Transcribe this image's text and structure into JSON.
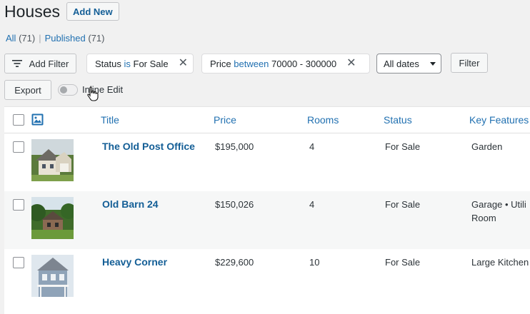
{
  "header": {
    "title": "Houses",
    "add_new": "Add New"
  },
  "views": {
    "all": "All",
    "all_count": "(71)",
    "separator": "|",
    "published": "Published",
    "published_count": "(71)"
  },
  "filters": {
    "add_filter": "Add Filter",
    "status_field": "Status",
    "status_op": "is",
    "status_value": "For Sale",
    "price_field": "Price",
    "price_op": "between",
    "price_value": "70000 - 300000",
    "dates_select": "All dates",
    "filter_button": "Filter",
    "export_button": "Export",
    "inline_edit": "Inline Edit",
    "inline_edit_on": false
  },
  "table": {
    "columns": [
      "Title",
      "Price",
      "Rooms",
      "Status",
      "Key Features"
    ],
    "rows": [
      {
        "title": "The Old Post Office",
        "price": "$195,000",
        "rooms": "4",
        "status": "For Sale",
        "features": "Garden"
      },
      {
        "title": "Old Barn 24",
        "price": "$150,026",
        "rooms": "4",
        "status": "For Sale",
        "features": "Garage • Utili Room"
      },
      {
        "title": "Heavy Corner",
        "price": "$229,600",
        "rooms": "10",
        "status": "For Sale",
        "features": "Large Kitchen"
      }
    ]
  },
  "colors": {
    "link": "#2271b1",
    "link_dark": "#135e96",
    "background": "#f1f1f1"
  }
}
